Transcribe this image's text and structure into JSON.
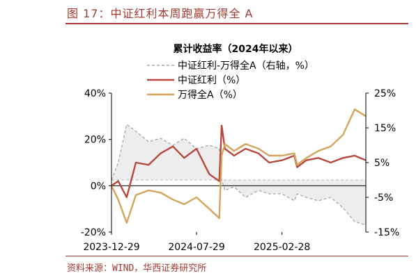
{
  "figure_title": "图 17：中证红利本周跑赢万得全 A",
  "source": "资料来源：WIND，华西证券研究所",
  "chart_data": {
    "type": "line",
    "legend_title": "累计收益率（2024年以来）",
    "legend_placement": "top-center",
    "grid": false,
    "left_axis": {
      "range": [
        -20,
        40
      ],
      "ticks": [
        "40%",
        "20%",
        "0%",
        "-20%"
      ],
      "tick_values": [
        40,
        20,
        0,
        -20
      ]
    },
    "right_axis": {
      "range": [
        -15,
        25
      ],
      "ticks": [
        "25%",
        "15%",
        "5%",
        "-5%",
        "-15%"
      ],
      "tick_values": [
        25,
        15,
        5,
        -5,
        -15
      ]
    },
    "x_ticks": [
      "2023-12-29",
      "2024-07-29",
      "2025-02-28"
    ],
    "x_tick_dates": [
      "2023-12-29",
      "2024-07-29",
      "2025-02-28"
    ],
    "x_range": [
      "2023-12-29",
      "2025-09-26"
    ],
    "series": [
      {
        "name": "中证红利-万得全A（右轴，%）",
        "axis": "right",
        "style": "dashed-area",
        "color": "#a6a6a6",
        "fill": "#ededed",
        "x": [
          "2023-12-29",
          "2024-01-15",
          "2024-02-05",
          "2024-02-28",
          "2024-03-31",
          "2024-04-30",
          "2024-05-31",
          "2024-06-28",
          "2024-07-29",
          "2024-08-30",
          "2024-09-24",
          "2024-09-30",
          "2024-10-08",
          "2024-10-31",
          "2024-11-29",
          "2024-12-31",
          "2025-01-27",
          "2025-02-28",
          "2025-03-31",
          "2025-04-07",
          "2025-04-30",
          "2025-05-30",
          "2025-06-30",
          "2025-07-31",
          "2025-08-29",
          "2025-09-26"
        ],
        "values": [
          0,
          5,
          16,
          14,
          11,
          12,
          10,
          12,
          9,
          10,
          9,
          0,
          -3,
          -2,
          -5,
          -3,
          -4,
          -4,
          -6,
          -4,
          -5,
          -6,
          -5,
          -8,
          -12,
          -13
        ]
      },
      {
        "name": "中证红利（%）",
        "axis": "left",
        "style": "line",
        "color": "#b5483d",
        "x": [
          "2023-12-29",
          "2024-01-15",
          "2024-02-05",
          "2024-02-28",
          "2024-03-31",
          "2024-04-30",
          "2024-05-31",
          "2024-06-28",
          "2024-07-29",
          "2024-08-30",
          "2024-09-24",
          "2024-09-30",
          "2024-10-08",
          "2024-10-31",
          "2024-11-29",
          "2024-12-31",
          "2025-01-27",
          "2025-02-28",
          "2025-03-31",
          "2025-04-07",
          "2025-04-30",
          "2025-05-30",
          "2025-06-30",
          "2025-07-31",
          "2025-08-29",
          "2025-09-26"
        ],
        "values": [
          0,
          2,
          -5,
          10,
          9,
          14,
          17,
          12,
          16,
          5,
          2,
          26,
          16,
          13,
          16,
          14,
          10,
          11,
          13,
          8,
          11,
          12,
          10,
          12,
          13,
          11
        ]
      },
      {
        "name": "万得全A（%）",
        "axis": "left",
        "style": "line",
        "color": "#d4a45c",
        "x": [
          "2023-12-29",
          "2024-01-15",
          "2024-02-05",
          "2024-02-28",
          "2024-03-31",
          "2024-04-30",
          "2024-05-31",
          "2024-06-28",
          "2024-07-29",
          "2024-08-30",
          "2024-09-24",
          "2024-09-30",
          "2024-10-08",
          "2024-10-31",
          "2024-11-29",
          "2024-12-31",
          "2025-01-27",
          "2025-02-28",
          "2025-03-31",
          "2025-04-07",
          "2025-04-30",
          "2025-05-30",
          "2025-06-30",
          "2025-07-31",
          "2025-08-29",
          "2025-09-26"
        ],
        "values": [
          0,
          -6,
          -16,
          -4,
          -2,
          -3,
          -6,
          -8,
          -5,
          -10,
          -14,
          13,
          18,
          15,
          18,
          16,
          13,
          13,
          14,
          9,
          12,
          15,
          17,
          22,
          33,
          30
        ]
      }
    ]
  }
}
